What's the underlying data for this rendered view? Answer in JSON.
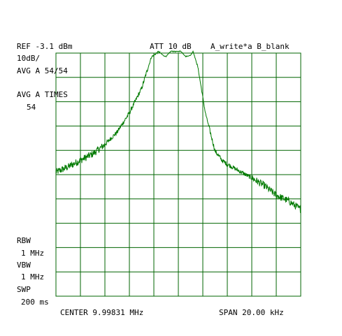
{
  "header": {
    "ref": "REF -3.1 dBm",
    "att": "ATT 10 dB",
    "trace_mode": "A_write*a B_blank"
  },
  "left_panel": {
    "scale": "10dB/",
    "avg_a": "AVG A 54/54",
    "avg_times_label": "AVG A TIMES",
    "avg_times_value": "54",
    "rbw_label": "RBW",
    "rbw_value": "1 MHz",
    "vbw_label": "VBW",
    "vbw_value": "1 MHz",
    "swp_label": "SWP",
    "swp_value": "200 ms"
  },
  "footer": {
    "center": "CENTER 9.99831 MHz",
    "span": "SPAN 20.00 kHz"
  },
  "colors": {
    "grid": "#006400",
    "trace": "#007a00",
    "text": "#000000"
  },
  "chart_data": {
    "type": "line",
    "title": "",
    "xlabel": "",
    "ylabel": "",
    "x_unit": "kHz offset from center",
    "xlim": [
      -10,
      10
    ],
    "ylim": [
      -103.1,
      -3.1
    ],
    "x_divisions": 10,
    "y_divisions": 10,
    "grid": true,
    "series": [
      {
        "x": [
          -10,
          -9,
          -8,
          -7,
          -6,
          -5,
          -4,
          -3,
          -2.2,
          -1.6,
          -1.2,
          -1.0,
          -0.6,
          -0.2,
          0.2,
          0.6,
          1.0,
          1.2,
          1.6,
          2.2,
          3,
          3.6,
          4,
          5,
          6,
          7,
          8,
          9,
          10
        ],
        "y": [
          -52.1,
          -49.9,
          -47.2,
          -44.6,
          -40.7,
          -35.6,
          -27.7,
          -17.6,
          -4.7,
          -2.5,
          -4.2,
          -4.5,
          -2.3,
          -2.5,
          -2.3,
          -4.5,
          -4.0,
          -2.3,
          -9.0,
          -27.5,
          -43.4,
          -47.4,
          -48.8,
          -51.7,
          -54.5,
          -57.5,
          -61.6,
          -63.9,
          -67.5
        ]
      }
    ]
  }
}
